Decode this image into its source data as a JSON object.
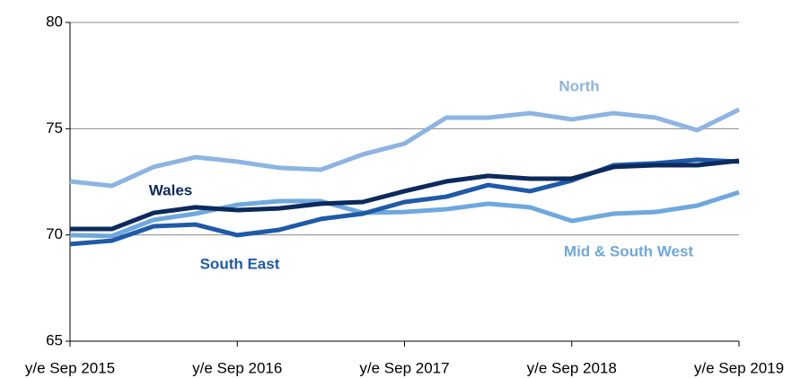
{
  "chart_data": {
    "type": "line",
    "categories": [
      "y/e Sep 2015",
      null,
      null,
      null,
      "y/e Sep 2016",
      null,
      null,
      null,
      "y/e Sep 2017",
      null,
      null,
      null,
      "y/e Sep 2018",
      null,
      null,
      null,
      "y/e Sep 2019"
    ],
    "series": [
      {
        "name": "North",
        "color": "#8db4e2",
        "values": [
          72.52,
          72.31,
          73.2,
          73.66,
          73.45,
          73.16,
          73.07,
          73.79,
          74.3,
          75.52,
          75.52,
          75.73,
          75.44,
          75.73,
          75.52,
          74.93,
          75.9
        ]
      },
      {
        "name": "Mid & South West",
        "color": "#6fa8dc",
        "values": [
          69.99,
          69.95,
          70.71,
          71.0,
          71.42,
          71.59,
          71.59,
          71.04,
          71.08,
          71.21,
          71.47,
          71.3,
          70.66,
          71.0,
          71.08,
          71.38,
          72.01
        ]
      },
      {
        "name": "South East",
        "color": "#1f5aa8",
        "values": [
          69.57,
          69.73,
          70.41,
          70.49,
          69.99,
          70.24,
          70.75,
          71.0,
          71.55,
          71.8,
          72.35,
          72.06,
          72.56,
          73.28,
          73.37,
          73.54,
          73.45
        ]
      },
      {
        "name": "Wales",
        "color": "#0d2a5c",
        "values": [
          70.28,
          70.28,
          71.04,
          71.3,
          71.17,
          71.25,
          71.47,
          71.55,
          72.06,
          72.52,
          72.78,
          72.65,
          72.65,
          73.2,
          73.28,
          73.28,
          73.49
        ]
      }
    ],
    "ylim": [
      65,
      80
    ],
    "yticks": [
      65,
      70,
      75,
      80
    ],
    "grid": true
  }
}
